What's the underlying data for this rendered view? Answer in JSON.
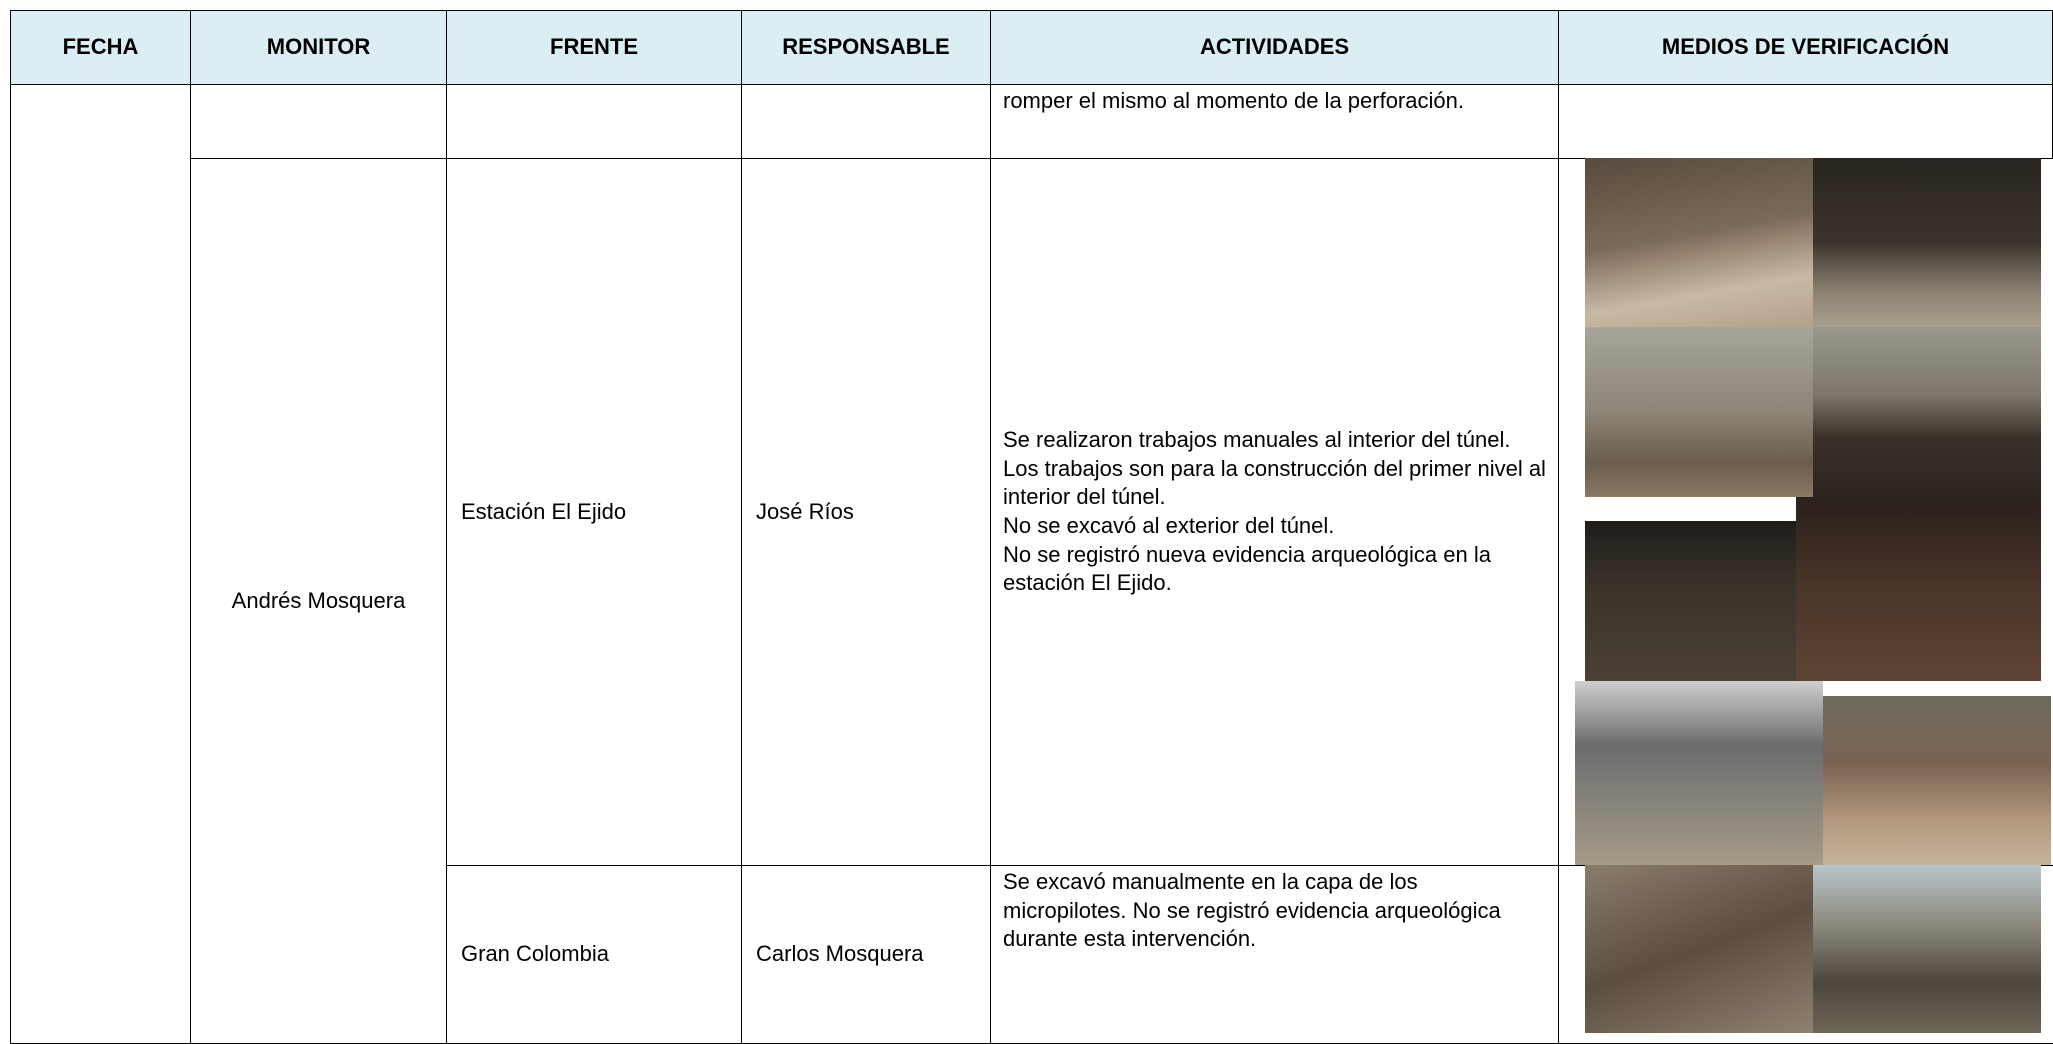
{
  "header": {
    "columns": [
      "FECHA",
      "MONITOR",
      "FRENTE",
      "RESPONSABLE",
      "ACTIVIDADES",
      "MEDIOS DE VERIFICACIÓN"
    ]
  },
  "rows": [
    {
      "activities": [
        "romper el mismo al momento de la perforación."
      ]
    },
    {
      "monitor": "Andrés Mosquera",
      "frente": "Estación El Ejido",
      "responsable": "José Ríos",
      "activities": [
        "Se realizaron trabajos manuales al interior del túnel.",
        "Los trabajos son para la construcción del primer nivel al interior del túnel.",
        "No se excavó al exterior del túnel.",
        "No se registró nueva evidencia arqueológica en la estación El Ejido."
      ]
    },
    {
      "frente": "Gran Colombia",
      "responsable": "Carlos Mosquera",
      "activities": [
        "Se excavó manualmente en la capa de los micropilotes. No se registró evidencia arqueológica durante esta intervención."
      ]
    }
  ]
}
